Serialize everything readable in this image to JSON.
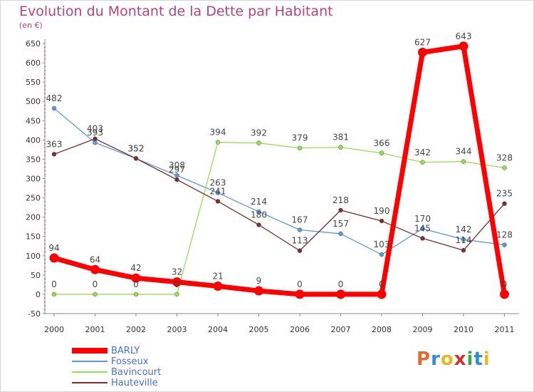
{
  "title": "Evolution du Montant de la Dette par Habitant",
  "unit_label": "(en €)",
  "brand": {
    "letters": [
      "P",
      "r",
      "o",
      "x",
      "i",
      "t",
      "i"
    ],
    "colors": [
      "#e06a2c",
      "#2c8fd6",
      "#e8b81e",
      "#d6302c",
      "#3aa84a",
      "#2c8fd6",
      "#e8b81e"
    ]
  },
  "chart_data": {
    "type": "line",
    "title": "Evolution du Montant de la Dette par Habitant",
    "ylabel": "(en €)",
    "xlabel": "",
    "categories": [
      "2000",
      "2001",
      "2002",
      "2003",
      "2004",
      "2005",
      "2006",
      "2007",
      "2008",
      "2009",
      "2010",
      "2011"
    ],
    "ylim": [
      -50,
      650
    ],
    "yticks": [
      -50,
      0,
      50,
      100,
      150,
      200,
      250,
      300,
      350,
      400,
      450,
      500,
      550,
      600,
      650
    ],
    "grid": false,
    "legend_position": "bottom-left",
    "series": [
      {
        "name": "BARLY",
        "color": "#ff0000",
        "values": [
          94,
          64,
          42,
          32,
          21,
          9,
          0,
          0,
          0,
          627,
          643,
          0
        ],
        "labels": [
          "94",
          "64",
          "42",
          "32",
          "21",
          "9",
          "0",
          "0",
          "0",
          "627",
          "643",
          "0"
        ]
      },
      {
        "name": "Fosseux",
        "color": "#5a9bd5",
        "values": [
          482,
          393,
          352,
          308,
          263,
          214,
          167,
          157,
          103,
          170,
          142,
          128
        ],
        "labels": [
          "482",
          "393",
          "352",
          "308",
          "263",
          "214",
          "167",
          "157",
          "103",
          "170",
          "142",
          "128"
        ]
      },
      {
        "name": "Bavincourt",
        "color": "#99dd55",
        "values": [
          0,
          0,
          0,
          0,
          394,
          392,
          379,
          381,
          366,
          342,
          344,
          328
        ],
        "labels": [
          "0",
          "0",
          "0",
          "0",
          "394",
          "392",
          "379",
          "381",
          "366",
          "342",
          "344",
          "328"
        ]
      },
      {
        "name": "Hauteville",
        "color": "#7a2e2e",
        "values": [
          363,
          403,
          352,
          297,
          241,
          180,
          113,
          218,
          190,
          145,
          114,
          235
        ],
        "labels": [
          "363",
          "403",
          "352",
          "297",
          "241",
          "180",
          "113",
          "218",
          "190",
          "145",
          "114",
          "235"
        ]
      }
    ]
  }
}
